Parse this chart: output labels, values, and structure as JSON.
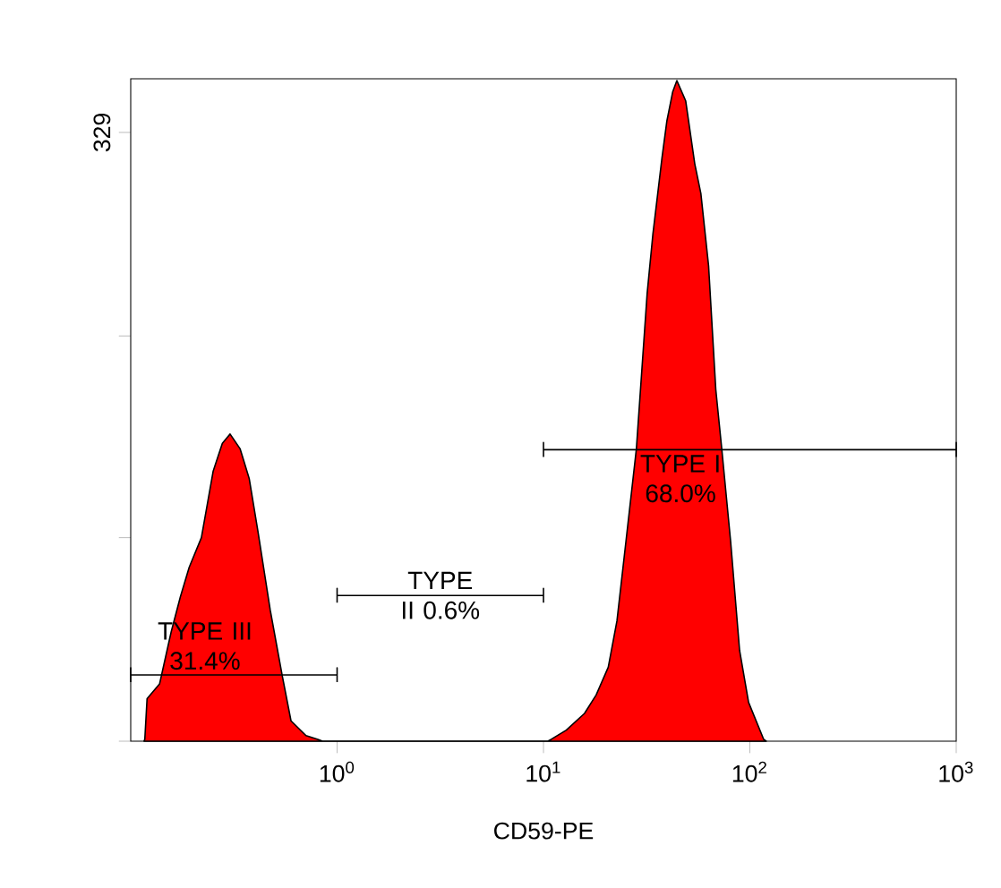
{
  "chart_data": {
    "type": "area",
    "xlabel": "CD59-PE",
    "log": "x",
    "color": "#ff0000",
    "x": [
      0.116,
      0.117,
      0.12,
      0.138,
      0.157,
      0.174,
      0.192,
      0.22,
      0.251,
      0.278,
      0.303,
      0.339,
      0.375,
      0.414,
      0.474,
      0.541,
      0.598,
      0.707,
      0.807,
      0.85,
      10.5,
      10.9,
      12.9,
      15.8,
      18.0,
      20.6,
      22.7,
      25.1,
      28.2,
      31.8,
      33.9,
      37.5,
      39.6,
      42.3,
      44.3,
      48.9,
      54.1,
      57.9,
      63.1,
      68.4,
      73.1,
      80.7,
      89.2,
      98.6,
      116.7,
      120
    ],
    "values": [
      0,
      1,
      23,
      31,
      59,
      78,
      94,
      110,
      146,
      161,
      166,
      158,
      142,
      113,
      71,
      36,
      11,
      3,
      1,
      0,
      0,
      1,
      6,
      15,
      25,
      40,
      65,
      108,
      158,
      242,
      274,
      315,
      335,
      351,
      357,
      346,
      312,
      296,
      257,
      190,
      158,
      108,
      49,
      21,
      1,
      0
    ],
    "xlim": [
      0.1,
      1000
    ],
    "ylim": [
      0,
      358
    ],
    "xticks": [
      {
        "value": 1,
        "label": "10$^{0}$"
      },
      {
        "value": 10,
        "label": "10$^{1}$"
      },
      {
        "value": 100,
        "label": "10$^{2}$"
      },
      {
        "value": 1000,
        "label": "10$^{3}$"
      }
    ],
    "yticks": [
      {
        "value": 0,
        "label": null
      },
      {
        "value": 110,
        "label": null
      },
      {
        "value": 219,
        "label": null
      },
      329
    ],
    "annotations": [
      "TYPE III 31.4%",
      "TYPE II 0.6%",
      "TYPE I 68.0%"
    ],
    "tick_labels": "xy"
  }
}
